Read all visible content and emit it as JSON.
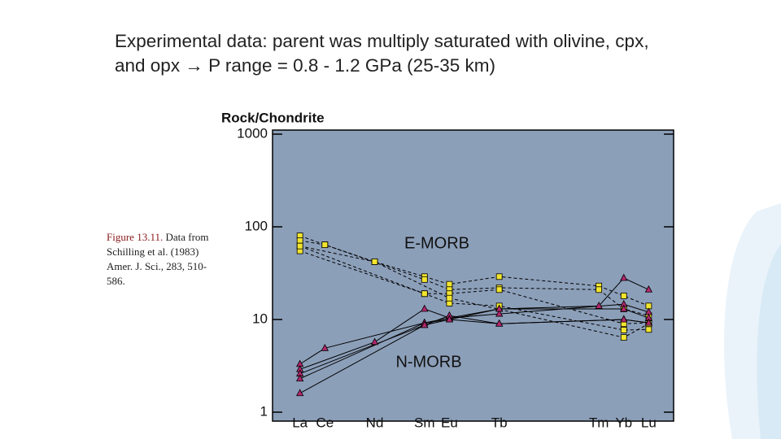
{
  "title": "Experimental data: parent was multiply saturated with olivine, cpx, and opx → P range = 0.8 - 1.2 GPa (25-35 km)",
  "caption": {
    "label": "Figure 13.11.",
    "text": "Data from Schilling et al. (1983) Amer. J. Sci., 283, 510-586."
  },
  "chart_data": {
    "type": "line",
    "y_label": "Rock/Chondrite",
    "log_y": true,
    "ylim": [
      1,
      1000
    ],
    "yticks": [
      1,
      10,
      100,
      1000
    ],
    "xlim": [
      55.9,
      72
    ],
    "xticks": [
      {
        "value": 57,
        "label": "La"
      },
      {
        "value": 58,
        "label": "Ce"
      },
      {
        "value": 60,
        "label": "Nd"
      },
      {
        "value": 62,
        "label": "Sm"
      },
      {
        "value": 63,
        "label": "Eu"
      },
      {
        "value": 65,
        "label": "Tb"
      },
      {
        "value": 69,
        "label": "Tm"
      },
      {
        "value": 70,
        "label": "Yb"
      },
      {
        "value": 71,
        "label": "Lu"
      }
    ],
    "groups": [
      {
        "name": "E-MORB",
        "color": "#f2e52e",
        "marker": "square",
        "dashed": true,
        "series": [
          {
            "x": [
              57,
              58,
              60,
              62,
              63,
              65,
              69,
              70,
              71
            ],
            "values": [
              80,
              64,
              42,
              29,
              24,
              29,
              23,
              18,
              14
            ]
          },
          {
            "x": [
              57,
              58,
              62,
              63,
              65,
              69,
              70,
              71
            ],
            "values": [
              71,
              64,
              27,
              21,
              22,
              21,
              13,
              11
            ]
          },
          {
            "x": [
              57,
              62,
              63,
              65,
              70,
              71
            ],
            "values": [
              62,
              19,
              19,
              21,
              9,
              9.2
            ]
          },
          {
            "x": [
              57,
              62,
              63,
              65,
              70,
              71
            ],
            "values": [
              55,
              19,
              15,
              14,
              7.7,
              7.8
            ]
          },
          {
            "x": [
              57,
              60,
              63,
              70,
              71
            ],
            "values": [
              62,
              42,
              17,
              6.4,
              9
            ]
          }
        ]
      },
      {
        "name": "N-MORB",
        "color": "#b3286e",
        "marker": "triangle",
        "dashed": false,
        "series": [
          {
            "x": [
              57,
              58,
              62,
              63,
              65,
              69,
              70,
              71
            ],
            "values": [
              3.3,
              4.9,
              9.2,
              10.4,
              13,
              14,
              28,
              21
            ]
          },
          {
            "x": [
              57,
              60,
              62,
              63,
              65,
              70,
              71
            ],
            "values": [
              2.9,
              5.7,
              13,
              10.4,
              11.5,
              14.6,
              12
            ]
          },
          {
            "x": [
              57,
              62,
              63,
              65,
              70,
              71
            ],
            "values": [
              2.6,
              8.7,
              11,
              9,
              10,
              9.2
            ]
          },
          {
            "x": [
              57,
              62,
              63,
              65,
              70,
              71
            ],
            "values": [
              2.3,
              9.2,
              10,
              13,
              13,
              10.4
            ]
          },
          {
            "x": [
              57,
              62,
              63,
              65,
              70,
              71
            ],
            "values": [
              1.6,
              8.7,
              10,
              9,
              10,
              9.2
            ]
          }
        ]
      }
    ]
  }
}
